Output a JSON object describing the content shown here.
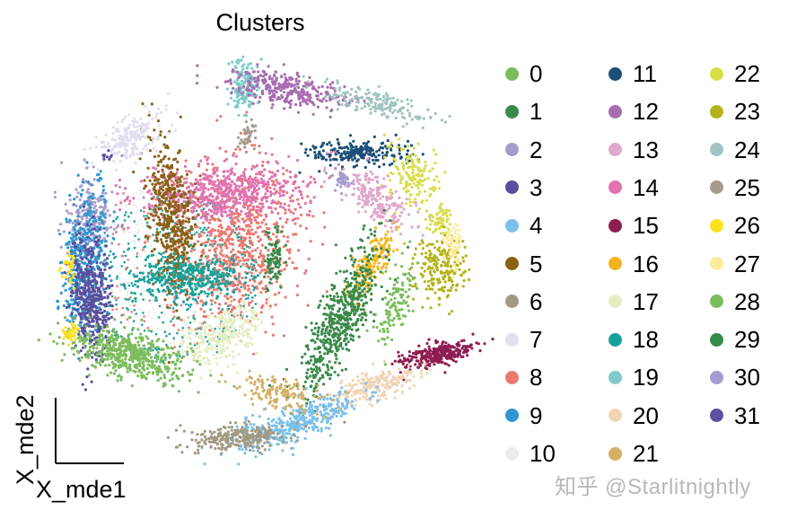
{
  "chart_data": {
    "type": "scatter",
    "title": "Clusters",
    "xlabel": "X_mde1",
    "ylabel": "X_mde2",
    "legend_position": "right",
    "legend_columns": 3,
    "grid": false,
    "clusters": [
      {
        "name": "0",
        "color": "#7cbc5c"
      },
      {
        "name": "1",
        "color": "#3a8a4a"
      },
      {
        "name": "2",
        "color": "#a49dcc"
      },
      {
        "name": "3",
        "color": "#5b4e9c"
      },
      {
        "name": "4",
        "color": "#7bc1ea"
      },
      {
        "name": "5",
        "color": "#8b6116"
      },
      {
        "name": "6",
        "color": "#a29a80"
      },
      {
        "name": "7",
        "color": "#e0dff0"
      },
      {
        "name": "8",
        "color": "#ea7a70"
      },
      {
        "name": "9",
        "color": "#3196d0"
      },
      {
        "name": "10",
        "color": "#ececec"
      },
      {
        "name": "11",
        "color": "#1c4f77"
      },
      {
        "name": "12",
        "color": "#a86cb0"
      },
      {
        "name": "13",
        "color": "#e0a8cc"
      },
      {
        "name": "14",
        "color": "#e073b0"
      },
      {
        "name": "15",
        "color": "#8e1d52"
      },
      {
        "name": "16",
        "color": "#f5b41d"
      },
      {
        "name": "17",
        "color": "#e4eec0"
      },
      {
        "name": "18",
        "color": "#16a29a"
      },
      {
        "name": "19",
        "color": "#7fcaca"
      },
      {
        "name": "20",
        "color": "#f0d4b4"
      },
      {
        "name": "21",
        "color": "#d4b066"
      },
      {
        "name": "22",
        "color": "#d9dd4a"
      },
      {
        "name": "23",
        "color": "#b3b41c"
      },
      {
        "name": "24",
        "color": "#9fc4c2"
      },
      {
        "name": "25",
        "color": "#a59a8c"
      },
      {
        "name": "26",
        "color": "#fde020"
      },
      {
        "name": "27",
        "color": "#fdeb9c"
      },
      {
        "name": "28",
        "color": "#7bbd5d"
      },
      {
        "name": "29",
        "color": "#368a49"
      },
      {
        "name": "30",
        "color": "#a39cd0"
      },
      {
        "name": "31",
        "color": "#5e4f9f"
      }
    ]
  },
  "watermark": "知乎 @Starlitnightly"
}
